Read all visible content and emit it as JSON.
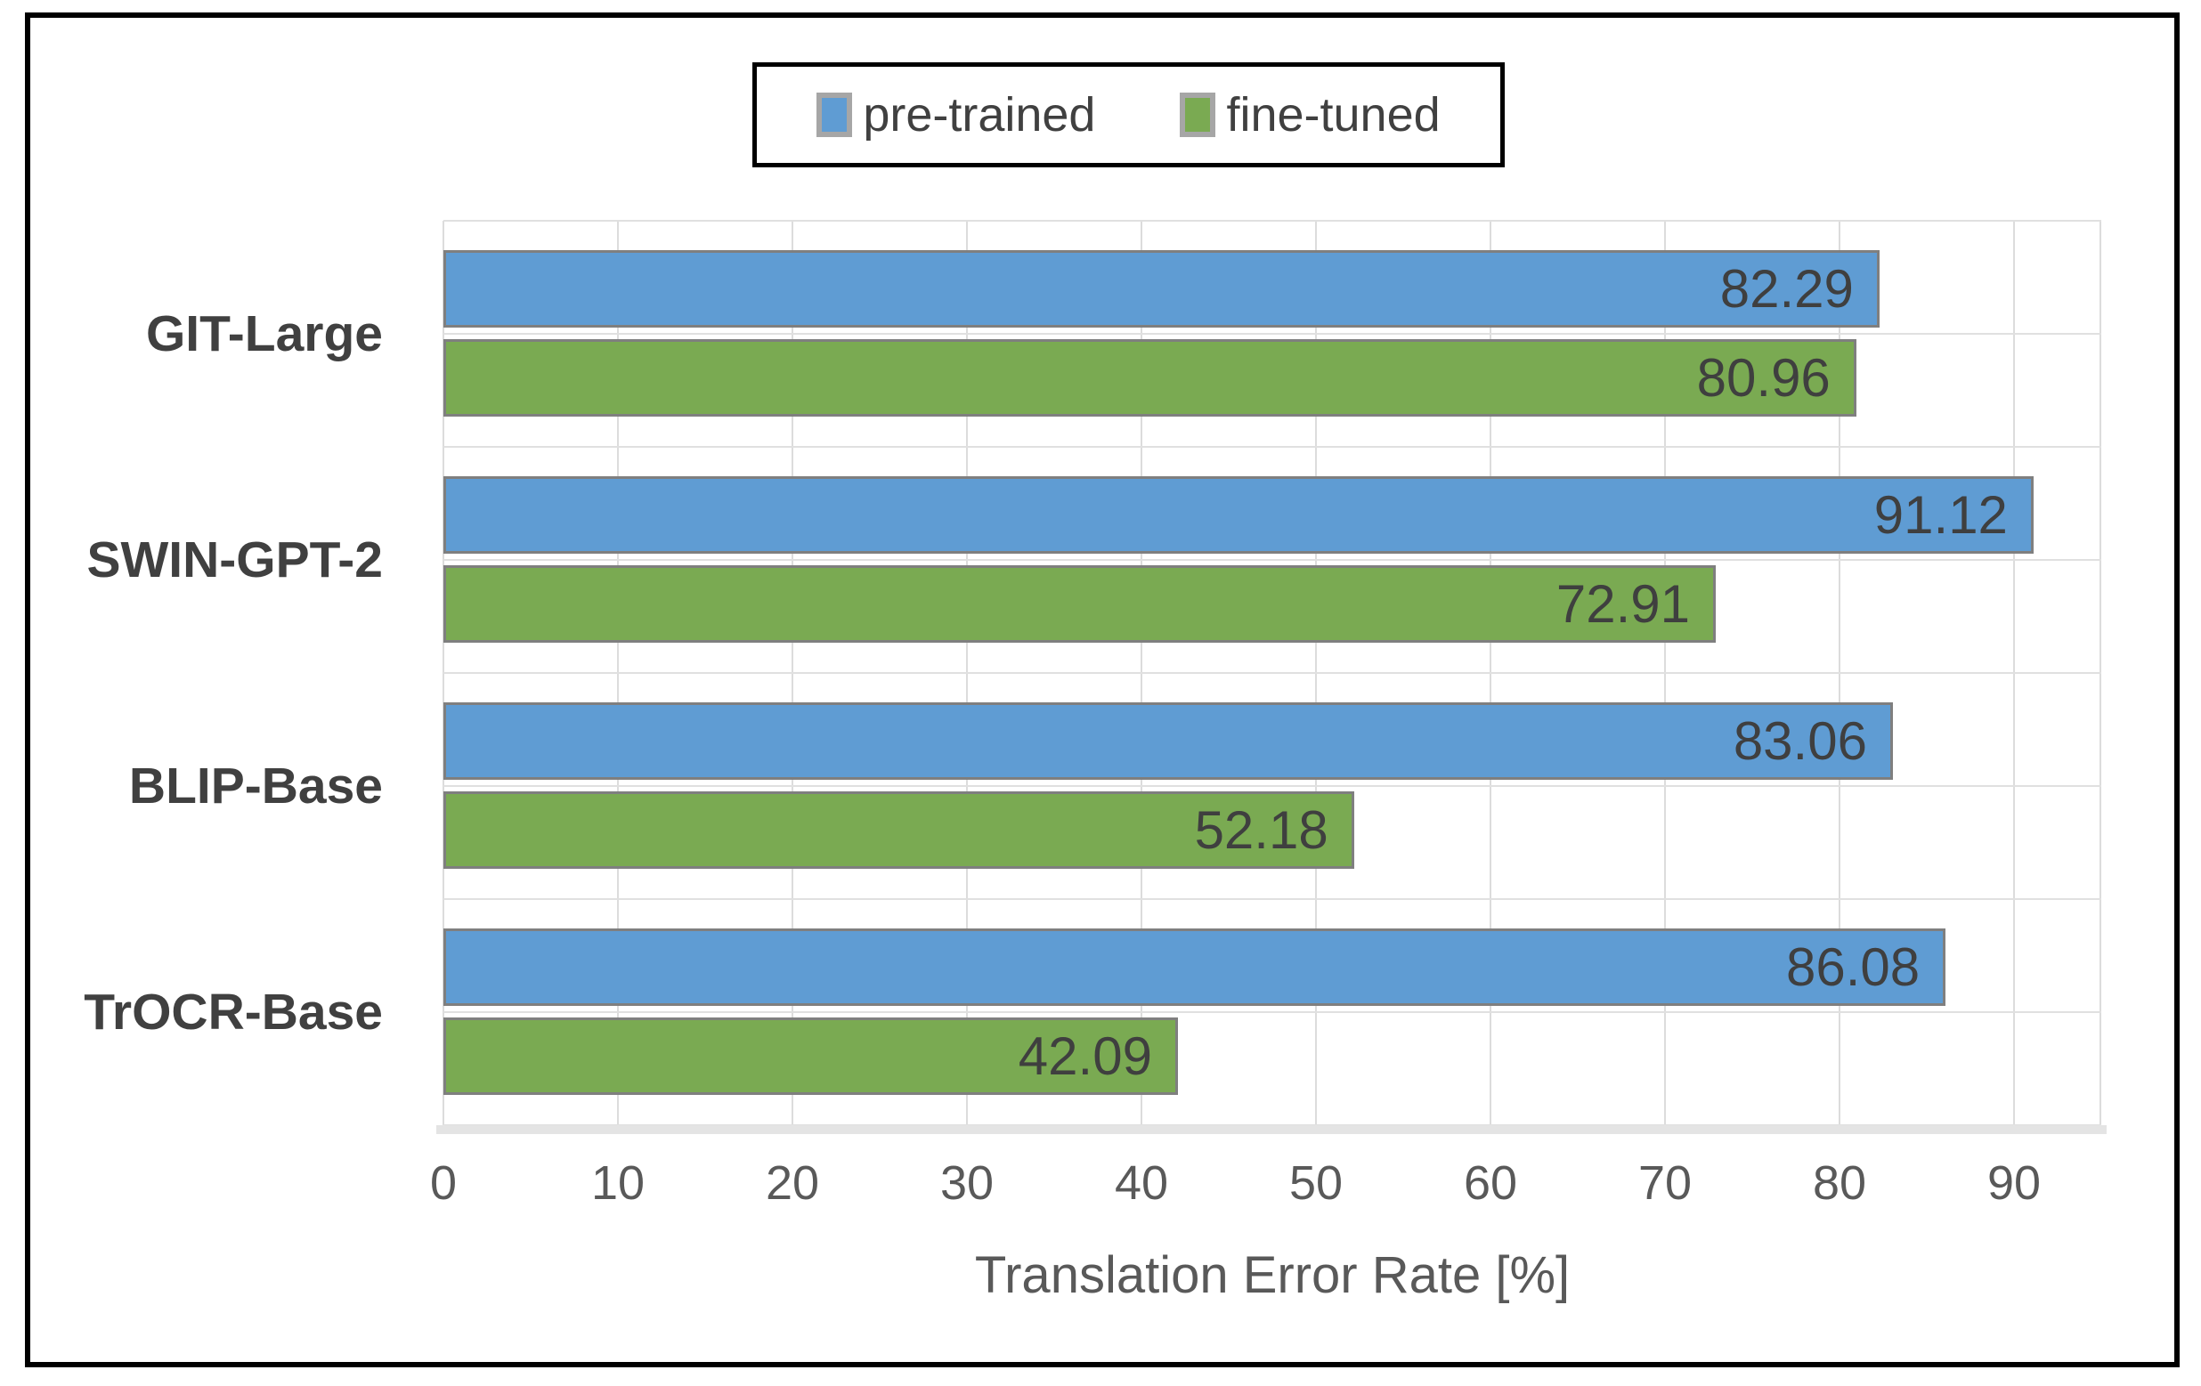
{
  "chart_data": {
    "type": "bar",
    "orientation": "horizontal",
    "title": "",
    "categories": [
      "GIT-Large",
      "SWIN-GPT-2",
      "BLIP-Base",
      "TrOCR-Base"
    ],
    "series": [
      {
        "name": "pre-trained",
        "color": "#5f9cd3",
        "values": [
          82.29,
          91.12,
          83.06,
          86.08
        ]
      },
      {
        "name": "fine-tuned",
        "color": "#7aaa52",
        "values": [
          80.96,
          72.91,
          52.18,
          42.09
        ]
      }
    ],
    "xlabel": "Translation Error Rate [%]",
    "xlim": [
      0,
      95
    ],
    "xticks": [
      0,
      10,
      20,
      30,
      40,
      50,
      60,
      70,
      80,
      90
    ],
    "grid": true,
    "value_labels": "inside-end",
    "legend_position": "top"
  },
  "colors": {
    "bar_border": "#7f7f7f",
    "gridline": "#dcdcdc",
    "axis_text": "#595959",
    "label_text": "#404040",
    "frame": "#000000",
    "background": "#ffffff"
  }
}
